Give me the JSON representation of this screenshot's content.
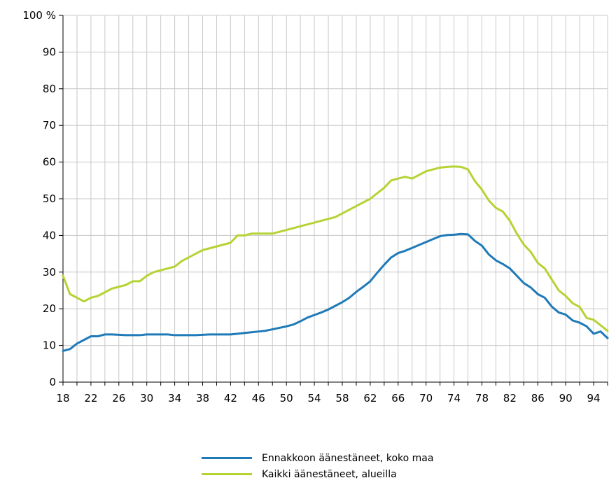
{
  "chart_data": {
    "type": "line",
    "title": "",
    "xlabel": "",
    "ylabel": "",
    "y_unit": "%",
    "xlim": [
      18,
      96
    ],
    "ylim": [
      0,
      100
    ],
    "grid": true,
    "legend_position": "bottom",
    "x_ticks": [
      "18",
      "22",
      "26",
      "30",
      "34",
      "38",
      "42",
      "46",
      "50",
      "54",
      "58",
      "62",
      "66",
      "70",
      "74",
      "78",
      "82",
      "86",
      "90",
      "94"
    ],
    "y_ticks": [
      "0",
      "10",
      "20",
      "30",
      "40",
      "50",
      "60",
      "70",
      "80",
      "90",
      "100 %"
    ],
    "x": [
      18,
      19,
      20,
      21,
      22,
      23,
      24,
      25,
      26,
      27,
      28,
      29,
      30,
      31,
      32,
      33,
      34,
      35,
      36,
      37,
      38,
      39,
      40,
      41,
      42,
      43,
      44,
      45,
      46,
      47,
      48,
      49,
      50,
      51,
      52,
      53,
      54,
      55,
      56,
      57,
      58,
      59,
      60,
      61,
      62,
      63,
      64,
      65,
      66,
      67,
      68,
      69,
      70,
      71,
      72,
      73,
      74,
      75,
      76,
      77,
      78,
      79,
      80,
      81,
      82,
      83,
      84,
      85,
      86,
      87,
      88,
      89,
      90,
      91,
      92,
      93,
      94,
      95,
      96
    ],
    "series": [
      {
        "name": "Ennakkoon äänestäneet, koko maa",
        "color": "#1f7ab8",
        "values": [
          8.5,
          9,
          10.5,
          11.5,
          12.5,
          12.5,
          13,
          13,
          12.9,
          12.8,
          12.8,
          12.8,
          13,
          13,
          13,
          13,
          12.8,
          12.8,
          12.8,
          12.8,
          12.9,
          13,
          13,
          13,
          13,
          13.2,
          13.4,
          13.6,
          13.8,
          14,
          14.4,
          14.8,
          15.2,
          15.7,
          16.6,
          17.6,
          18.3,
          19,
          19.8,
          20.8,
          21.8,
          23,
          24.6,
          26,
          27.5,
          29.8,
          32,
          34,
          35.2,
          35.8,
          36.6,
          37.4,
          38.2,
          39,
          39.8,
          40.1,
          40.2,
          40.4,
          40.3,
          38.5,
          37.2,
          34.8,
          33.2,
          32.2,
          31,
          29,
          27,
          25.8,
          24,
          23,
          20.6,
          19,
          18.4,
          16.8,
          16.2,
          15.2,
          13.2,
          13.8,
          12
        ]
      },
      {
        "name": "Kaikki äänestäneet, alueilla",
        "color": "#b5d334",
        "values": [
          29,
          24,
          23,
          22,
          23,
          23.5,
          24.5,
          25.5,
          26,
          26.5,
          27.5,
          27.5,
          29,
          30,
          30.5,
          31,
          31.5,
          33,
          34,
          35,
          36,
          36.5,
          37,
          37.5,
          38,
          40,
          40,
          40.5,
          40.5,
          40.5,
          40.5,
          41,
          41.5,
          42,
          42.5,
          43,
          43.5,
          44,
          44.5,
          45,
          46,
          47,
          48,
          49,
          50,
          51.5,
          53,
          55,
          55.5,
          56,
          55.5,
          56.5,
          57.5,
          58,
          58.5,
          58.7,
          58.8,
          58.7,
          58,
          54.8,
          52.5,
          49.5,
          47.5,
          46.5,
          44,
          40.5,
          37.5,
          35.5,
          32.5,
          31,
          28,
          25,
          23.5,
          21.5,
          20.5,
          17.5,
          17,
          15.5,
          14
        ]
      }
    ]
  }
}
